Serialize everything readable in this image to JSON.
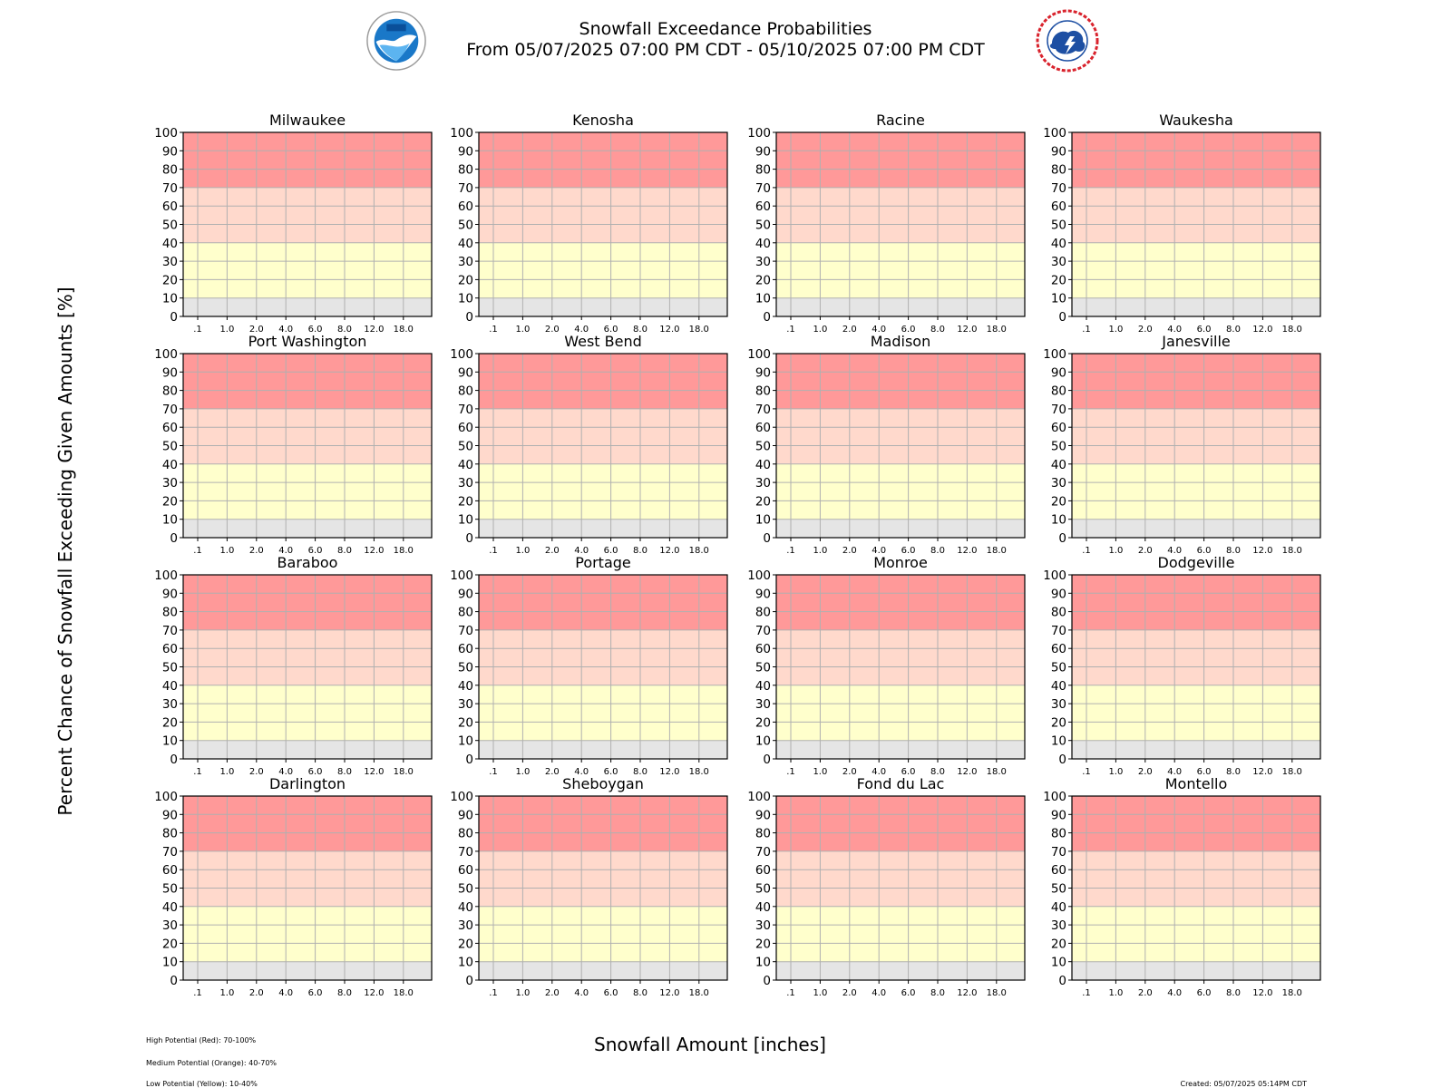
{
  "header": {
    "title": "Snowfall Exceedance Probabilities",
    "subtitle": "From 05/07/2025 07:00 PM CDT - 05/10/2025 07:00 PM CDT",
    "logos": [
      "noaa-logo",
      "nws-logo"
    ]
  },
  "footer": {
    "legend_high": "High Potential (Red): 70-100%",
    "legend_medium": "Medium Potential (Orange): 40-70%",
    "legend_low": "Low Potential (Yellow): 10-40%",
    "created": "Created: 05/07/2025 05:14PM CDT"
  },
  "colors": {
    "high": "#ff9999",
    "medium": "#ffd9cc",
    "low": "#ffffcc",
    "minimal": "#e5e5e5",
    "grid": "#b0b0b0"
  },
  "chart_data": {
    "type": "line",
    "xlabel": "Snowfall Amount [inches]",
    "ylabel": "Percent Chance of Snowfall Exceeding Given Amounts [%]",
    "ylim": [
      0,
      100
    ],
    "yticks": [
      0,
      10,
      20,
      30,
      40,
      50,
      60,
      70,
      80,
      90,
      100
    ],
    "categories": [
      ".1",
      "1.0",
      "2.0",
      "4.0",
      "6.0",
      "8.0",
      "12.0",
      "18.0"
    ],
    "grid": true,
    "bands": [
      {
        "level": "high",
        "from": 70,
        "to": 100
      },
      {
        "level": "medium",
        "from": 40,
        "to": 70
      },
      {
        "level": "low",
        "from": 10,
        "to": 40
      },
      {
        "level": "minimal",
        "from": 0,
        "to": 10
      }
    ],
    "panels": [
      {
        "title": "Milwaukee",
        "values": []
      },
      {
        "title": "Kenosha",
        "values": []
      },
      {
        "title": "Racine",
        "values": []
      },
      {
        "title": "Waukesha",
        "values": []
      },
      {
        "title": "Port Washington",
        "values": []
      },
      {
        "title": "West Bend",
        "values": []
      },
      {
        "title": "Madison",
        "values": []
      },
      {
        "title": "Janesville",
        "values": []
      },
      {
        "title": "Baraboo",
        "values": []
      },
      {
        "title": "Portage",
        "values": []
      },
      {
        "title": "Monroe",
        "values": []
      },
      {
        "title": "Dodgeville",
        "values": []
      },
      {
        "title": "Darlington",
        "values": []
      },
      {
        "title": "Sheboygan",
        "values": []
      },
      {
        "title": "Fond du Lac",
        "values": []
      },
      {
        "title": "Montello",
        "values": []
      }
    ]
  }
}
